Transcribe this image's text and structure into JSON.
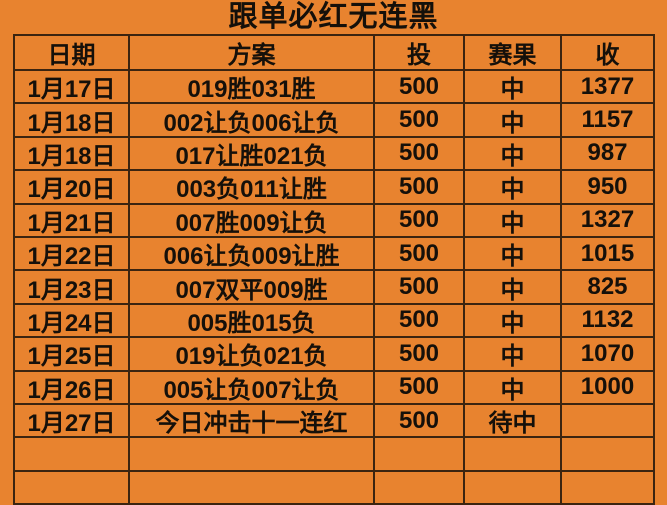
{
  "title": "跟单必红无连黑",
  "chart_data": {
    "type": "table",
    "title": "跟单必红无连黑",
    "columns": [
      "日期",
      "方案",
      "投",
      "赛果",
      "收"
    ],
    "rows": [
      [
        "1月17日",
        "019胜031胜",
        "500",
        "中",
        "1377"
      ],
      [
        "1月18日",
        "002让负006让负",
        "500",
        "中",
        "1157"
      ],
      [
        "1月18日",
        "017让胜021负",
        "500",
        "中",
        "987"
      ],
      [
        "1月20日",
        "003负011让胜",
        "500",
        "中",
        "950"
      ],
      [
        "1月21日",
        "007胜009让负",
        "500",
        "中",
        "1327"
      ],
      [
        "1月22日",
        "006让负009让胜",
        "500",
        "中",
        "1015"
      ],
      [
        "1月23日",
        "007双平009胜",
        "500",
        "中",
        "825"
      ],
      [
        "1月24日",
        "005胜015负",
        "500",
        "中",
        "1132"
      ],
      [
        "1月25日",
        "019让负021负",
        "500",
        "中",
        "1070"
      ],
      [
        "1月26日",
        "005让负007让负",
        "500",
        "中",
        "1000"
      ],
      [
        "1月27日",
        "今日冲击十一连红",
        "500",
        "待中",
        ""
      ],
      [
        "",
        "",
        "",
        "",
        ""
      ],
      [
        "",
        "",
        "",
        "",
        ""
      ]
    ]
  },
  "colors": {
    "background": "#E8832F",
    "grid_line": "#3B2410",
    "text": "#15100A"
  }
}
